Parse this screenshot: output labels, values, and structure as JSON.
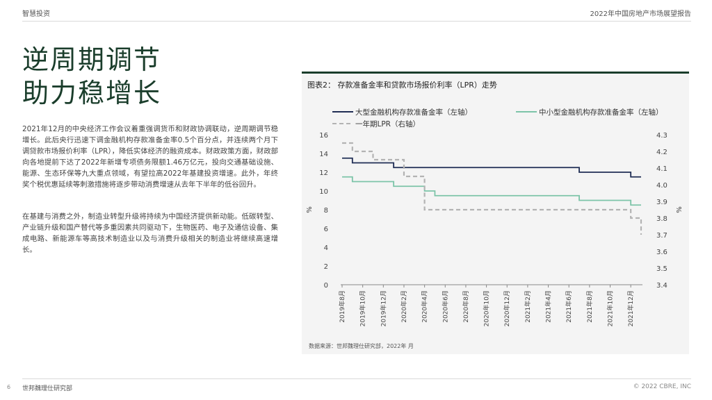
{
  "header": {
    "brand": "智慧投资",
    "report_title": "2022年中国房地产市场展望报告"
  },
  "title": {
    "line1": "逆周期调节",
    "line2": "助力稳增长"
  },
  "paragraphs": [
    "2021年12月的中央经济工作会议着重强调货币和财政协调联动，逆周期调节稳增长。此后央行迅速下调金融机构存款准备金率0.5个百分点，并连续两个月下调贷款市场报价利率（LPR），降低实体经济的融资成本。财政政策方面，财政部向各地提前下达了2022年新增专项债务限额1.46万亿元，投向交通基础设施、能源、生态环保等九大重点领域，有望拉高2022年基建投资增速。此外，年终奖个税优惠延续等刺激措施将逐步带动消费增速从去年下半年的低谷回升。",
    "在基建与消费之外，制造业转型升级将持续为中国经济提供新动能。低碳转型、产业链升级和国产替代等多重因素共同驱动下，生物医药、电子及通信设备、集成电路、新能源车等高技术制造业以及与消费升级相关的制造业将继续高速增长。"
  ],
  "figure": {
    "title": "图表2： 存款准备金率和贷款市场报价利率（LPR）走势",
    "source": "数据来源：世邦魏理仕研究部，2022年 月"
  },
  "chart_data": {
    "type": "line",
    "x": [
      "2019年8月",
      "2019年9月",
      "2019年10月",
      "2019年11月",
      "2019年12月",
      "2020年1月",
      "2020年2月",
      "2020年3月",
      "2020年4月",
      "2020年5月",
      "2020年6月",
      "2020年7月",
      "2020年8月",
      "2020年9月",
      "2020年10月",
      "2020年11月",
      "2020年12月",
      "2021年1月",
      "2021年2月",
      "2021年3月",
      "2021年4月",
      "2021年5月",
      "2021年6月",
      "2021年7月",
      "2021年8月",
      "2021年9月",
      "2021年10月",
      "2021年11月",
      "2021年12月",
      "2022年1月"
    ],
    "tick_labels": [
      "2019年8月",
      "2019年10月",
      "2019年12月",
      "2020年2月",
      "2020年4月",
      "2020年6月",
      "2020年8月",
      "2020年10月",
      "2020年12月",
      "2021年2月",
      "2021年4月",
      "2021年6月",
      "2021年8月",
      "2021年10月",
      "2021年12月"
    ],
    "series": [
      {
        "name": "大型金融机构存款准备金率（左轴）",
        "axis": "left",
        "color": "#1f2d54",
        "dash": "",
        "values": [
          13.5,
          13.0,
          13.0,
          13.0,
          13.0,
          12.5,
          12.5,
          12.5,
          12.5,
          12.5,
          12.5,
          12.5,
          12.5,
          12.5,
          12.5,
          12.5,
          12.5,
          12.5,
          12.5,
          12.5,
          12.5,
          12.5,
          12.5,
          12.0,
          12.0,
          12.0,
          12.0,
          12.0,
          11.5,
          11.5
        ]
      },
      {
        "name": "中小型金融机构存款准备金率（左轴）",
        "axis": "left",
        "color": "#7cc4a8",
        "dash": "",
        "values": [
          11.5,
          11.0,
          11.0,
          11.0,
          11.0,
          10.5,
          10.5,
          10.5,
          10.0,
          9.5,
          9.5,
          9.5,
          9.5,
          9.5,
          9.5,
          9.5,
          9.5,
          9.5,
          9.5,
          9.5,
          9.5,
          9.5,
          9.5,
          9.0,
          9.0,
          9.0,
          9.0,
          9.0,
          8.5,
          8.5
        ]
      },
      {
        "name": "一年期LPR（右轴）",
        "axis": "right",
        "color": "#b3b3b3",
        "dash": "6,4",
        "values": [
          4.25,
          4.2,
          4.2,
          4.15,
          4.15,
          4.15,
          4.05,
          4.05,
          3.85,
          3.85,
          3.85,
          3.85,
          3.85,
          3.85,
          3.85,
          3.85,
          3.85,
          3.85,
          3.85,
          3.85,
          3.85,
          3.85,
          3.85,
          3.85,
          3.85,
          3.85,
          3.85,
          3.85,
          3.8,
          3.7
        ]
      }
    ],
    "y_left": {
      "label": "%",
      "min": 0,
      "max": 16,
      "ticks": [
        0,
        2,
        4,
        6,
        8,
        10,
        12,
        14,
        16
      ]
    },
    "y_right": {
      "label": "%",
      "min": 3.4,
      "max": 4.3,
      "ticks": [
        "3.4",
        "3.5",
        "3.6",
        "3.7",
        "3.8",
        "3.9",
        "4.0",
        "4.1",
        "4.2",
        "4.3"
      ]
    },
    "grid": false,
    "legend_position": "top"
  },
  "footer": {
    "page_number": "6",
    "org": "世邦魏理仕研究部",
    "copyright": "© 2022 CBRE, INC"
  }
}
